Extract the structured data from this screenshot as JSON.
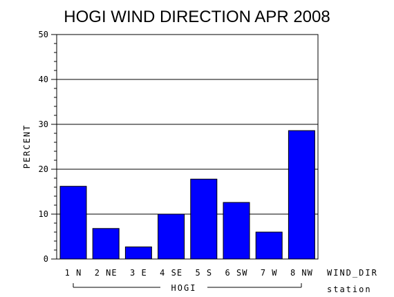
{
  "chart_data": {
    "type": "bar",
    "title": "HOGI WIND DIRECTION APR 2008",
    "ylabel": "PERCENT",
    "xlabel": "WIND_DIR",
    "group_label": "HOGI",
    "group_axis_label": "station",
    "categories": [
      "1 N",
      "2 NE",
      "3 E",
      "4 SE",
      "5 S",
      "6 SW",
      "7 W",
      "8 NW"
    ],
    "values": [
      16.2,
      6.8,
      2.7,
      10.0,
      17.8,
      12.6,
      6.0,
      28.6
    ],
    "ylim": [
      0,
      50
    ],
    "yticks": [
      "0",
      "10",
      "20",
      "30",
      "40",
      "50"
    ],
    "grid": true,
    "bar_color": "#0000ff"
  }
}
